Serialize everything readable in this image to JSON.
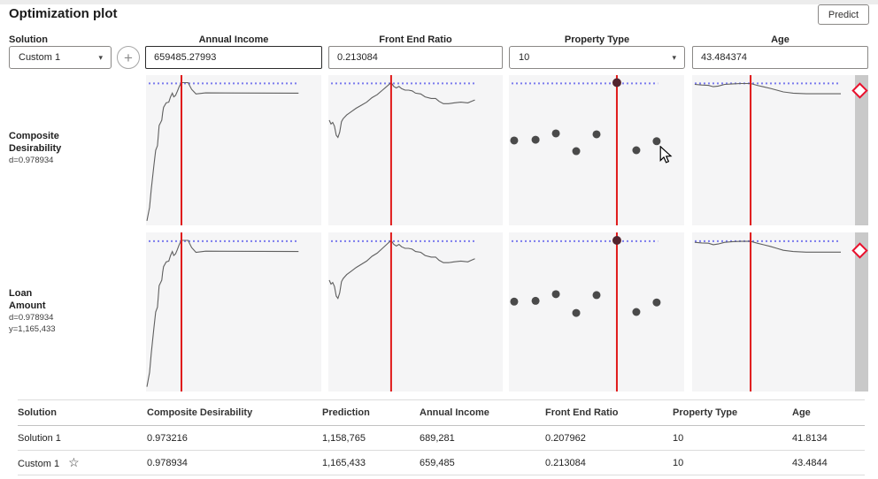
{
  "header": {
    "title": "Optimization plot",
    "predict_label": "Predict"
  },
  "controls": {
    "solution_label": "Solution",
    "solution_value": "Custom 1",
    "add_button_label": "+",
    "factors": [
      {
        "name": "Annual Income",
        "value": "659485.27993",
        "kind": "input",
        "focused": true
      },
      {
        "name": "Front End Ratio",
        "value": "0.213084",
        "kind": "input",
        "focused": false
      },
      {
        "name": "Property Type",
        "value": "10",
        "kind": "select",
        "focused": false
      },
      {
        "name": "Age",
        "value": "43.484374",
        "kind": "input",
        "focused": false
      }
    ]
  },
  "profiler": {
    "rows": [
      {
        "line1": "Composite",
        "line2": "Desirability",
        "sub1": "d=0.978934",
        "sub2": ""
      },
      {
        "line1": "Loan",
        "line2": "Amount",
        "sub1": "d=0.978934",
        "sub2": "y=1,165,433"
      }
    ],
    "dotted_y": 0.055,
    "columns": [
      {
        "name": "Annual Income",
        "type": "line",
        "red_x": 0.202,
        "span": 0.87,
        "curve": [
          [
            0.005,
            0.97
          ],
          [
            0.02,
            0.88
          ],
          [
            0.03,
            0.76
          ],
          [
            0.045,
            0.6
          ],
          [
            0.055,
            0.5
          ],
          [
            0.065,
            0.47
          ],
          [
            0.07,
            0.4
          ],
          [
            0.075,
            0.335
          ],
          [
            0.09,
            0.3
          ],
          [
            0.095,
            0.25
          ],
          [
            0.1,
            0.215
          ],
          [
            0.115,
            0.185
          ],
          [
            0.13,
            0.18
          ],
          [
            0.14,
            0.145
          ],
          [
            0.15,
            0.12
          ],
          [
            0.158,
            0.145
          ],
          [
            0.168,
            0.135
          ],
          [
            0.178,
            0.11
          ],
          [
            0.19,
            0.075
          ],
          [
            0.202,
            0.05
          ],
          [
            0.24,
            0.05
          ],
          [
            0.26,
            0.095
          ],
          [
            0.285,
            0.125
          ],
          [
            0.34,
            0.118
          ],
          [
            0.87,
            0.12
          ]
        ]
      },
      {
        "name": "Front End Ratio",
        "type": "line",
        "red_x": 0.36,
        "span": 0.84,
        "curve": [
          [
            0.005,
            0.3
          ],
          [
            0.015,
            0.325
          ],
          [
            0.025,
            0.315
          ],
          [
            0.035,
            0.34
          ],
          [
            0.045,
            0.4
          ],
          [
            0.055,
            0.415
          ],
          [
            0.065,
            0.38
          ],
          [
            0.075,
            0.31
          ],
          [
            0.085,
            0.29
          ],
          [
            0.105,
            0.265
          ],
          [
            0.13,
            0.245
          ],
          [
            0.16,
            0.22
          ],
          [
            0.19,
            0.2
          ],
          [
            0.22,
            0.18
          ],
          [
            0.25,
            0.15
          ],
          [
            0.28,
            0.13
          ],
          [
            0.31,
            0.1
          ],
          [
            0.335,
            0.075
          ],
          [
            0.36,
            0.05
          ],
          [
            0.375,
            0.075
          ],
          [
            0.39,
            0.085
          ],
          [
            0.405,
            0.075
          ],
          [
            0.42,
            0.09
          ],
          [
            0.44,
            0.1
          ],
          [
            0.46,
            0.1
          ],
          [
            0.48,
            0.105
          ],
          [
            0.5,
            0.12
          ],
          [
            0.53,
            0.125
          ],
          [
            0.555,
            0.145
          ],
          [
            0.59,
            0.155
          ],
          [
            0.615,
            0.155
          ],
          [
            0.635,
            0.175
          ],
          [
            0.66,
            0.19
          ],
          [
            0.69,
            0.19
          ],
          [
            0.72,
            0.185
          ],
          [
            0.76,
            0.18
          ],
          [
            0.8,
            0.185
          ],
          [
            0.82,
            0.175
          ],
          [
            0.84,
            0.165
          ]
        ]
      },
      {
        "name": "Property Type",
        "type": "scatter",
        "red_x": 0.616,
        "span": 0.85,
        "points": [
          [
            0.03,
            0.435
          ],
          [
            0.152,
            0.43
          ],
          [
            0.268,
            0.388
          ],
          [
            0.384,
            0.506
          ],
          [
            0.5,
            0.394
          ],
          [
            0.727,
            0.5
          ],
          [
            0.843,
            0.44
          ]
        ],
        "highlight": [
          0.616,
          0.05
        ]
      },
      {
        "name": "Age",
        "type": "line",
        "red_x": 0.359,
        "span": 0.91,
        "curve": [
          [
            0.016,
            0.062
          ],
          [
            0.06,
            0.066
          ],
          [
            0.1,
            0.068
          ],
          [
            0.13,
            0.077
          ],
          [
            0.16,
            0.073
          ],
          [
            0.2,
            0.062
          ],
          [
            0.25,
            0.058
          ],
          [
            0.3,
            0.056
          ],
          [
            0.359,
            0.056
          ],
          [
            0.4,
            0.068
          ],
          [
            0.44,
            0.078
          ],
          [
            0.48,
            0.088
          ],
          [
            0.52,
            0.1
          ],
          [
            0.56,
            0.112
          ],
          [
            0.62,
            0.12
          ],
          [
            0.7,
            0.124
          ],
          [
            0.913,
            0.124
          ]
        ]
      }
    ]
  },
  "table": {
    "columns": [
      "Solution",
      "Composite Desirability",
      "Prediction",
      "Annual Income",
      "Front End Ratio",
      "Property Type",
      "Age"
    ],
    "rows": [
      {
        "cells": [
          "Solution 1",
          "0.973216",
          "1,158,765",
          "689,281",
          "0.207962",
          "10",
          "41.8134"
        ],
        "starred": false
      },
      {
        "cells": [
          "Custom 1",
          "0.978934",
          "1,165,433",
          "659,485",
          "0.213084",
          "10",
          "43.4844"
        ],
        "starred": true
      }
    ],
    "star_glyph": "☆"
  },
  "icons": {
    "dropdown_caret": "▾"
  },
  "colors": {
    "red_line": "#e01a1a",
    "dotted_line": "#7b7bee",
    "curve": "#5f5f5f",
    "dot": "#4a4a4a",
    "highlight_dot": "#52242e",
    "plot_bg": "#f5f5f6",
    "strip": "#c9c9c9",
    "diamond": "#e8112d"
  }
}
